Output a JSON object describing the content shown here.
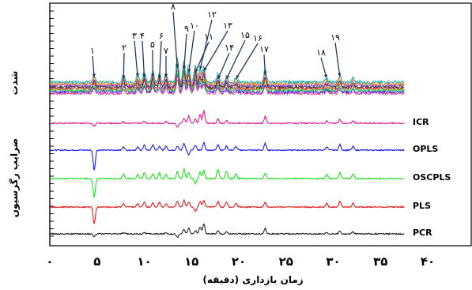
{
  "chart_data": {
    "type": "line",
    "xlabel": "زمان بازداری (دقیقه)",
    "ylabel_top": "شدت",
    "ylabel_bottom": "ضرایب رگرسیون",
    "x_ticks": [
      "٠",
      "۵",
      "١٠",
      "١۵",
      "٢٠",
      "٢۵",
      "٣٠",
      "٣۵",
      "۴٠"
    ],
    "xlim": [
      0,
      40
    ],
    "peak_labels": [
      {
        "label": "١",
        "x": 4.7
      },
      {
        "label": "٢",
        "x": 7.8
      },
      {
        "label": "٣",
        "x": 9.3
      },
      {
        "label": "۴",
        "x": 10.0
      },
      {
        "label": "۵",
        "x": 10.9
      },
      {
        "label": "۶",
        "x": 11.6
      },
      {
        "label": "٧",
        "x": 12.3
      },
      {
        "label": "٨",
        "x": 13.5
      },
      {
        "label": "٩",
        "x": 14.2
      },
      {
        "label": "١٠",
        "x": 14.7
      },
      {
        "label": "١١",
        "x": 15.4
      },
      {
        "label": "١٢",
        "x": 15.9
      },
      {
        "label": "١٣",
        "x": 16.3
      },
      {
        "label": "١۴",
        "x": 17.8
      },
      {
        "label": "١۵",
        "x": 18.7
      },
      {
        "label": "١۶",
        "x": 19.7
      },
      {
        "label": "١٧",
        "x": 22.8
      },
      {
        "label": "١٨",
        "x": 29.3
      },
      {
        "label": "١٩",
        "x": 30.7
      }
    ],
    "series": [
      {
        "name": "ICR",
        "color": "#e6198a"
      },
      {
        "name": "OPLS",
        "color": "#1a1aff"
      },
      {
        "name": "OSCPLS",
        "color": "#1ee01e"
      },
      {
        "name": "PLS",
        "color": "#e81c1c"
      },
      {
        "name": "PCR",
        "color": "#222222"
      }
    ],
    "overlay_colors": [
      "#e6198a",
      "#1a1aff",
      "#1ee01e",
      "#e81c1c",
      "#222222",
      "#8a2be2",
      "#ff8c00",
      "#00a5a5"
    ],
    "peaks_min": [
      4.7,
      7.8,
      9.3,
      10.0,
      10.9,
      11.6,
      12.3,
      13.5,
      14.2,
      14.7,
      15.4,
      15.9,
      16.3,
      17.8,
      18.7,
      19.7,
      22.8,
      29.3,
      30.7,
      32.1
    ],
    "regression_peaks": {
      "ICR": [
        [
          4.7,
          -0.35
        ],
        [
          7.8,
          0.2
        ],
        [
          10.0,
          0.25
        ],
        [
          12.3,
          0.2
        ],
        [
          13.5,
          -0.5
        ],
        [
          14.2,
          0.6
        ],
        [
          14.7,
          0.9
        ],
        [
          15.4,
          0.5
        ],
        [
          15.9,
          1.1
        ],
        [
          16.3,
          1.6
        ],
        [
          17.8,
          0.5
        ],
        [
          18.7,
          0.3
        ],
        [
          22.8,
          0.9
        ],
        [
          29.3,
          0.3
        ],
        [
          30.7,
          0.5
        ],
        [
          32.1,
          0.3
        ]
      ],
      "OPLS": [
        [
          4.7,
          -2.5
        ],
        [
          7.8,
          0.45
        ],
        [
          9.3,
          0.35
        ],
        [
          10.0,
          0.6
        ],
        [
          10.9,
          0.7
        ],
        [
          11.6,
          0.45
        ],
        [
          12.3,
          0.55
        ],
        [
          13.5,
          0.5
        ],
        [
          14.2,
          0.9
        ],
        [
          14.7,
          -0.6
        ],
        [
          15.4,
          0.65
        ],
        [
          16.3,
          0.95
        ],
        [
          17.8,
          0.75
        ],
        [
          18.7,
          0.5
        ],
        [
          19.7,
          0.45
        ],
        [
          22.8,
          0.85
        ],
        [
          29.3,
          0.45
        ],
        [
          30.7,
          0.7
        ],
        [
          32.1,
          0.45
        ]
      ],
      "OSCPLS": [
        [
          4.7,
          -2.4
        ],
        [
          7.8,
          0.6
        ],
        [
          9.3,
          0.55
        ],
        [
          10.0,
          0.7
        ],
        [
          10.9,
          0.6
        ],
        [
          11.6,
          0.75
        ],
        [
          12.3,
          0.5
        ],
        [
          13.5,
          0.85
        ],
        [
          14.2,
          1.2
        ],
        [
          14.7,
          0.7
        ],
        [
          15.4,
          -0.6
        ],
        [
          15.9,
          0.8
        ],
        [
          16.3,
          1.0
        ],
        [
          17.8,
          1.15
        ],
        [
          18.7,
          0.9
        ],
        [
          19.7,
          0.65
        ],
        [
          22.8,
          0.7
        ],
        [
          29.3,
          0.55
        ],
        [
          30.7,
          0.75
        ],
        [
          32.1,
          0.6
        ]
      ],
      "PLS": [
        [
          4.7,
          -2.1
        ],
        [
          7.8,
          0.45
        ],
        [
          9.3,
          0.4
        ],
        [
          10.0,
          0.65
        ],
        [
          10.9,
          0.5
        ],
        [
          11.6,
          0.6
        ],
        [
          12.3,
          0.45
        ],
        [
          13.5,
          0.75
        ],
        [
          14.2,
          0.9
        ],
        [
          14.7,
          0.6
        ],
        [
          15.4,
          -0.5
        ],
        [
          15.9,
          0.7
        ],
        [
          16.3,
          0.9
        ],
        [
          17.8,
          0.75
        ],
        [
          18.7,
          0.6
        ],
        [
          19.7,
          0.5
        ],
        [
          22.8,
          0.6
        ],
        [
          29.3,
          0.45
        ],
        [
          30.7,
          0.7
        ],
        [
          32.1,
          0.5
        ]
      ],
      "PCR": [
        [
          4.7,
          -0.35
        ],
        [
          7.8,
          0.15
        ],
        [
          10.0,
          0.2
        ],
        [
          12.3,
          0.15
        ],
        [
          13.5,
          -0.45
        ],
        [
          14.2,
          0.55
        ],
        [
          14.7,
          0.7
        ],
        [
          15.4,
          0.45
        ],
        [
          15.9,
          0.85
        ],
        [
          16.3,
          1.3
        ],
        [
          17.8,
          0.4
        ],
        [
          18.7,
          0.25
        ],
        [
          22.8,
          0.7
        ],
        [
          29.3,
          0.2
        ],
        [
          30.7,
          0.4
        ],
        [
          32.1,
          0.25
        ]
      ]
    }
  }
}
